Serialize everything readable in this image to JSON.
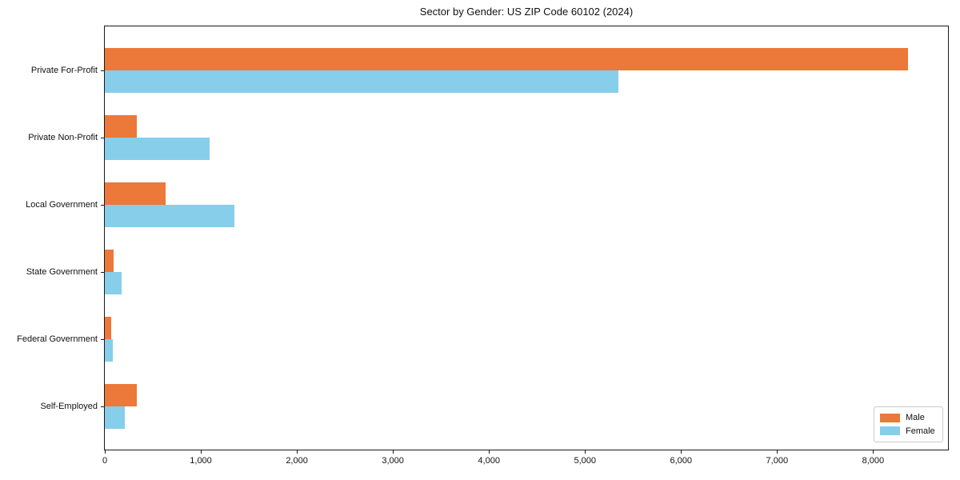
{
  "chart_data": {
    "type": "bar",
    "orientation": "horizontal",
    "title": "Sector by Gender: US ZIP Code 60102 (2024)",
    "categories": [
      "Private For-Profit",
      "Private Non-Profit",
      "Local Government",
      "State Government",
      "Federal Government",
      "Self-Employed"
    ],
    "series": [
      {
        "name": "Male",
        "color": "#ec7839",
        "values": [
          8360,
          335,
          630,
          95,
          65,
          335
        ]
      },
      {
        "name": "Female",
        "color": "#87ceeb",
        "values": [
          5350,
          1090,
          1350,
          175,
          85,
          210
        ]
      }
    ],
    "xlabel": "",
    "ylabel": "",
    "xlim": [
      0,
      8780
    ],
    "xticks": [
      0,
      1000,
      2000,
      3000,
      4000,
      5000,
      6000,
      7000,
      8000
    ],
    "xtick_labels": [
      "0",
      "1,000",
      "2,000",
      "3,000",
      "4,000",
      "5,000",
      "6,000",
      "7,000",
      "8,000"
    ],
    "grid": false,
    "legend_position": "lower right",
    "axis_color": "#1a1a1a"
  }
}
